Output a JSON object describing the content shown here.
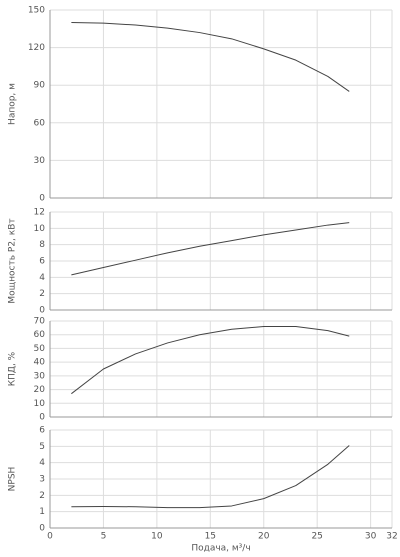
{
  "chart_data": [
    {
      "type": "line",
      "ylabel": "Напор, м",
      "xlim": [
        0,
        32
      ],
      "ylim": [
        0,
        150
      ],
      "yticks": [
        0,
        30,
        60,
        90,
        120,
        150
      ],
      "grid": true,
      "x": [
        2,
        5,
        8,
        11,
        14,
        17,
        20,
        23,
        26,
        28
      ],
      "series": [
        {
          "color": "#444444",
          "values": [
            140,
            139.5,
            138,
            135.5,
            132,
            127,
            119,
            110,
            97,
            85
          ]
        }
      ]
    },
    {
      "type": "line",
      "ylabel": "Мощность P2, кВт",
      "xlim": [
        0,
        32
      ],
      "ylim": [
        0,
        12
      ],
      "yticks": [
        0,
        2,
        4,
        6,
        8,
        10,
        12
      ],
      "grid": true,
      "x": [
        2,
        5,
        8,
        11,
        14,
        17,
        20,
        23,
        26,
        28
      ],
      "series": [
        {
          "color": "#444444",
          "values": [
            4.3,
            5.2,
            6.1,
            7.0,
            7.8,
            8.5,
            9.2,
            9.8,
            10.4,
            10.7
          ]
        }
      ]
    },
    {
      "type": "line",
      "ylabel": "КПД, %",
      "xlim": [
        0,
        32
      ],
      "ylim": [
        0,
        70
      ],
      "yticks": [
        0,
        10,
        20,
        30,
        40,
        50,
        60,
        70
      ],
      "grid": true,
      "x": [
        2,
        5,
        8,
        11,
        14,
        17,
        20,
        23,
        26,
        28
      ],
      "series": [
        {
          "color": "#444444",
          "values": [
            17,
            35,
            46,
            54,
            60,
            64,
            66,
            66,
            63,
            59
          ]
        }
      ]
    },
    {
      "type": "line",
      "ylabel": "NPSH",
      "xlabel": "Подача, м³/ч",
      "xlim": [
        0,
        32
      ],
      "xticks": [
        0,
        5,
        10,
        15,
        20,
        25,
        30,
        32
      ],
      "ylim": [
        0,
        6
      ],
      "yticks": [
        0,
        1,
        2,
        3,
        4,
        5,
        6
      ],
      "grid": true,
      "x": [
        2,
        5,
        8,
        11,
        14,
        17,
        20,
        23,
        26,
        28
      ],
      "series": [
        {
          "color": "#444444",
          "values": [
            1.3,
            1.32,
            1.3,
            1.25,
            1.25,
            1.35,
            1.8,
            2.6,
            3.9,
            5.05
          ]
        }
      ]
    }
  ]
}
